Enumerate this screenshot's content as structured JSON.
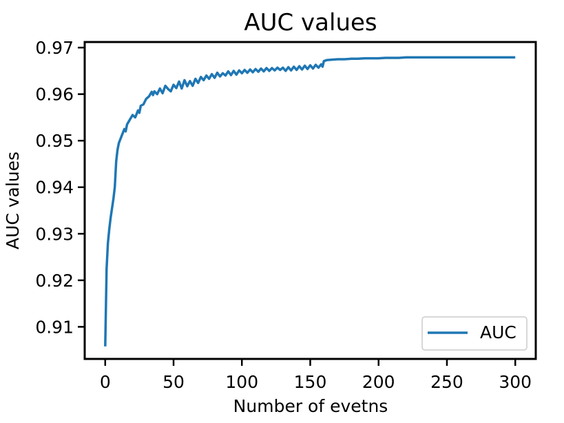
{
  "chart_data": {
    "type": "line",
    "title": "AUC values",
    "xlabel": "Number of evetns",
    "ylabel": "AUC values",
    "xlim": [
      -15,
      315
    ],
    "ylim": [
      0.9031,
      0.9712
    ],
    "xticks": [
      0,
      50,
      100,
      150,
      200,
      250,
      300
    ],
    "yticks": [
      0.91,
      0.92,
      0.93,
      0.94,
      0.95,
      0.96,
      0.97
    ],
    "xtick_labels": [
      "0",
      "50",
      "100",
      "150",
      "200",
      "250",
      "300"
    ],
    "ytick_labels": [
      "0.91",
      "0.92",
      "0.93",
      "0.94",
      "0.95",
      "0.96",
      "0.97"
    ],
    "grid": false,
    "legend_position": "lower-right",
    "series": [
      {
        "name": "AUC",
        "color": "#1f77b4",
        "x": [
          0,
          1,
          2,
          3,
          4,
          5,
          6,
          7,
          8,
          9,
          10,
          12,
          14,
          15,
          16,
          18,
          20,
          22,
          24,
          25,
          26,
          28,
          30,
          32,
          34,
          35,
          36,
          38,
          40,
          42,
          44,
          46,
          48,
          50,
          52,
          54,
          56,
          58,
          60,
          62,
          64,
          66,
          68,
          70,
          72,
          74,
          76,
          78,
          80,
          82,
          84,
          86,
          88,
          90,
          92,
          94,
          96,
          98,
          100,
          102,
          104,
          106,
          108,
          110,
          112,
          114,
          116,
          118,
          120,
          122,
          124,
          126,
          128,
          130,
          132,
          134,
          136,
          138,
          140,
          142,
          144,
          146,
          148,
          150,
          152,
          154,
          156,
          158,
          159,
          160,
          162,
          165,
          170,
          175,
          180,
          185,
          190,
          195,
          200,
          205,
          210,
          215,
          220,
          230,
          240,
          250,
          260,
          270,
          280,
          290,
          300
        ],
        "y": [
          0.9058,
          0.9225,
          0.928,
          0.931,
          0.9335,
          0.9355,
          0.9375,
          0.94,
          0.9455,
          0.948,
          0.9495,
          0.951,
          0.9525,
          0.952,
          0.9535,
          0.9545,
          0.9555,
          0.955,
          0.9565,
          0.956,
          0.9575,
          0.9578,
          0.959,
          0.9595,
          0.9605,
          0.9598,
          0.9606,
          0.96,
          0.9612,
          0.9602,
          0.9618,
          0.9611,
          0.9606,
          0.962,
          0.9613,
          0.9627,
          0.9612,
          0.963,
          0.9617,
          0.9628,
          0.9618,
          0.9633,
          0.9624,
          0.9637,
          0.963,
          0.964,
          0.9633,
          0.9643,
          0.9635,
          0.9646,
          0.9638,
          0.9645,
          0.964,
          0.9649,
          0.9641,
          0.965,
          0.9642,
          0.9651,
          0.9645,
          0.9652,
          0.9646,
          0.9653,
          0.9647,
          0.9654,
          0.9648,
          0.9655,
          0.9649,
          0.9656,
          0.965,
          0.9656,
          0.9651,
          0.9657,
          0.9652,
          0.9657,
          0.965,
          0.9658,
          0.9651,
          0.9659,
          0.9652,
          0.966,
          0.9653,
          0.9661,
          0.9654,
          0.9662,
          0.9655,
          0.9663,
          0.9657,
          0.9664,
          0.9659,
          0.9671,
          0.9673,
          0.9674,
          0.9675,
          0.9675,
          0.9676,
          0.9676,
          0.9677,
          0.9677,
          0.9677,
          0.9678,
          0.9678,
          0.9678,
          0.9679,
          0.9679,
          0.9679,
          0.9679,
          0.9679,
          0.9679,
          0.9679,
          0.9679,
          0.9679
        ]
      }
    ]
  }
}
